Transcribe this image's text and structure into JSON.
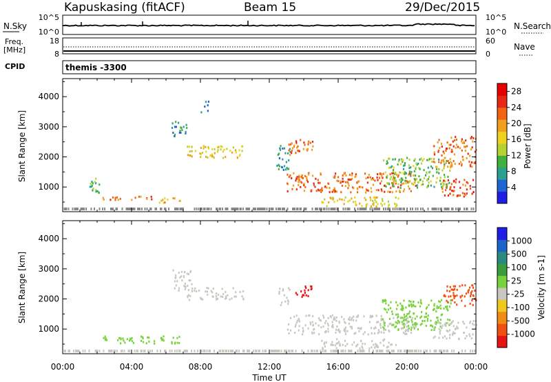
{
  "header": {
    "station": "Kapuskasing (fitACF)",
    "beam": "Beam 15",
    "date": "29/Dec/2015"
  },
  "noise_panel": {
    "left_label": "N.Sky",
    "left_ticks": [
      "10^5",
      "10^0"
    ],
    "right_label": "N.Search",
    "right_ticks": [
      "10^5",
      "10^0"
    ]
  },
  "freq_panel": {
    "left_label_line1": "Freq.",
    "left_label_line2": "[MHz]",
    "left_ticks": [
      "18",
      "8"
    ],
    "right_label": "Nave",
    "right_ticks": [
      "60",
      "0"
    ]
  },
  "cpid": {
    "label": "CPID",
    "value": "themis -3300"
  },
  "chart_data": [
    {
      "type": "heatmap",
      "panel": "power",
      "ylabel": "Slant Range [km]",
      "ytick_labels": [
        "1000",
        "2000",
        "3000",
        "4000"
      ],
      "yticks": [
        1000,
        2000,
        3000,
        4000
      ],
      "ylim": [
        180,
        4600
      ],
      "x_tick_labels": [
        "00:00",
        "04:00",
        "08:00",
        "12:00",
        "16:00",
        "20:00",
        "00:00"
      ],
      "x_ticks_hours": [
        0,
        4,
        8,
        12,
        16,
        20,
        24
      ],
      "xlim_hours": [
        0,
        24
      ],
      "colorbar": {
        "label": "Power [dB]",
        "tick_labels": [
          "4",
          "8",
          "12",
          "16",
          "20",
          "24",
          "28"
        ],
        "ticks": [
          4,
          8,
          12,
          16,
          20,
          24,
          28
        ],
        "range": [
          0,
          30
        ],
        "colors": [
          "#1e1ee6",
          "#1e64d2",
          "#2aa090",
          "#40b040",
          "#b4d230",
          "#f0d21e",
          "#f0a01e",
          "#f06414",
          "#e62814",
          "#e60000"
        ]
      },
      "echo_regions": [
        {
          "t0": 1.5,
          "t1": 2.1,
          "r0": 700,
          "r1": 1350,
          "power": 10
        },
        {
          "t0": 2.3,
          "t1": 5.5,
          "r0": 600,
          "r1": 750,
          "power": 22
        },
        {
          "t0": 5.5,
          "t1": 6.8,
          "r0": 500,
          "r1": 680,
          "power": 18
        },
        {
          "t0": 6.3,
          "t1": 7.2,
          "r0": 2700,
          "r1": 3200,
          "power": 8
        },
        {
          "t0": 7.2,
          "t1": 10.5,
          "r0": 2000,
          "r1": 2400,
          "power": 16
        },
        {
          "t0": 8.0,
          "t1": 8.5,
          "r0": 3500,
          "r1": 3900,
          "power": 6
        },
        {
          "t0": 12.4,
          "t1": 13.2,
          "r0": 1600,
          "r1": 2400,
          "power": 8
        },
        {
          "t0": 13.0,
          "t1": 14.5,
          "r0": 2100,
          "r1": 2600,
          "power": 22
        },
        {
          "t0": 13.0,
          "t1": 20.5,
          "r0": 850,
          "r1": 1500,
          "power": 22
        },
        {
          "t0": 15.0,
          "t1": 19.5,
          "r0": 380,
          "r1": 700,
          "power": 16
        },
        {
          "t0": 18.5,
          "t1": 22.5,
          "r0": 1000,
          "r1": 2000,
          "power": 12
        },
        {
          "t0": 21.5,
          "t1": 24.0,
          "r0": 1700,
          "r1": 2700,
          "power": 22
        },
        {
          "t0": 22.0,
          "t1": 24.0,
          "r0": 700,
          "r1": 1300,
          "power": 24
        }
      ]
    },
    {
      "type": "heatmap",
      "panel": "velocity",
      "ylabel": "Slant Range [km]",
      "ytick_labels": [
        "1000",
        "2000",
        "3000",
        "4000"
      ],
      "yticks": [
        1000,
        2000,
        3000,
        4000
      ],
      "ylim": [
        180,
        4600
      ],
      "xlabel": "Time UT",
      "x_tick_labels": [
        "00:00",
        "04:00",
        "08:00",
        "12:00",
        "16:00",
        "20:00",
        "00:00"
      ],
      "x_ticks_hours": [
        0,
        4,
        8,
        12,
        16,
        20,
        24
      ],
      "xlim_hours": [
        0,
        24
      ],
      "colorbar": {
        "label": "Velocity [m s-1]",
        "tick_labels": [
          "1000",
          "500",
          "100",
          "25",
          "-25",
          "-100",
          "-500",
          "-1000"
        ],
        "colors": [
          "#1e1ee6",
          "#1e64c8",
          "#2a8a80",
          "#3c9c3c",
          "#78d23c",
          "#c8c8c0",
          "#f0c81e",
          "#f08c14",
          "#f05014",
          "#e61414"
        ]
      },
      "echo_regions": [
        {
          "t0": 2.3,
          "t1": 6.8,
          "r0": 550,
          "r1": 800,
          "velocity": 60
        },
        {
          "t0": 6.3,
          "t1": 7.5,
          "r0": 2300,
          "r1": 3000,
          "velocity": 0
        },
        {
          "t0": 7.2,
          "t1": 10.5,
          "r0": 2000,
          "r1": 2400,
          "velocity": 0
        },
        {
          "t0": 12.5,
          "t1": 13.2,
          "r0": 1800,
          "r1": 2400,
          "velocity": 0
        },
        {
          "t0": 13.5,
          "t1": 14.5,
          "r0": 2100,
          "r1": 2500,
          "velocity": -600
        },
        {
          "t0": 13.0,
          "t1": 20.5,
          "r0": 850,
          "r1": 1500,
          "velocity": 0
        },
        {
          "t0": 15.0,
          "t1": 19.5,
          "r0": 380,
          "r1": 700,
          "velocity": 0
        },
        {
          "t0": 18.5,
          "t1": 22.5,
          "r0": 1000,
          "r1": 2000,
          "velocity": 60
        },
        {
          "t0": 22.0,
          "t1": 24.0,
          "r0": 1800,
          "r1": 2500,
          "velocity": -400
        },
        {
          "t0": 21.5,
          "t1": 24.0,
          "r0": 700,
          "r1": 1300,
          "velocity": 0
        }
      ]
    }
  ]
}
